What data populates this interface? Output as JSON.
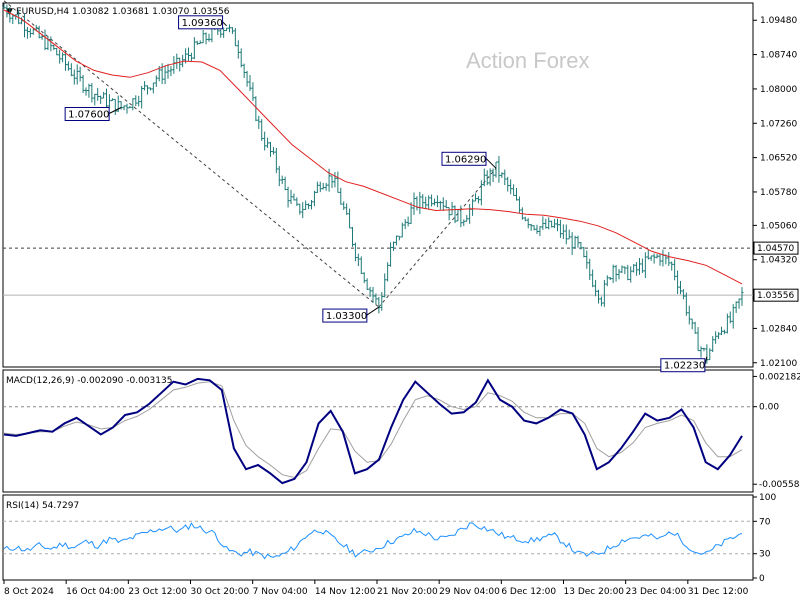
{
  "header": {
    "symbol_line": "EURUSD,H4  1.03082 1.03681 1.03070 1.03556"
  },
  "watermark": "Action Forex",
  "colors": {
    "bars": "#1e7a78",
    "ma": "#e02020",
    "macd_line": "#000080",
    "macd_signal": "#a0a0a0",
    "rsi_line": "#1e90ff",
    "dashed": "#404040",
    "grid": "#000000"
  },
  "chart_data": [
    {
      "type": "candlestick",
      "symbol": "EURUSD",
      "timeframe": "H4",
      "ohlc_header": {
        "open": 1.03082,
        "high": 1.03681,
        "low": 1.0307,
        "close": 1.03556
      },
      "y_ticks": [
        "1.09480",
        "1.08740",
        "1.08000",
        "1.07260",
        "1.06520",
        "1.05780",
        "1.05060",
        "1.04320",
        "1.03556",
        "1.02840",
        "1.02100"
      ],
      "ylim": [
        1.0203,
        1.0983
      ],
      "x_ticks": [
        "8 Oct 2024",
        "16 Oct 04:00",
        "23 Oct 12:00",
        "30 Oct 20:00",
        "7 Nov 04:00",
        "14 Nov 12:00",
        "21 Nov 20:00",
        "29 Nov 04:00",
        "6 Dec 12:00",
        "13 Dec 20:00",
        "23 Dec 04:00",
        "31 Dec 12:00"
      ],
      "price_path_closes": [
        1.0975,
        1.0955,
        1.0935,
        1.091,
        1.089,
        1.086,
        1.083,
        1.0805,
        1.0785,
        1.077,
        1.076,
        1.0775,
        1.08,
        1.0825,
        1.084,
        1.0855,
        1.088,
        1.0905,
        1.0925,
        1.0936,
        1.089,
        1.079,
        1.07,
        1.065,
        1.058,
        1.054,
        1.055,
        1.06,
        1.061,
        1.054,
        1.045,
        1.038,
        1.033,
        1.045,
        1.05,
        1.055,
        1.056,
        1.057,
        1.054,
        1.052,
        1.0545,
        1.06,
        1.0629,
        1.059,
        1.054,
        1.051,
        1.05,
        1.0505,
        1.048,
        1.046,
        1.04,
        1.035,
        1.042,
        1.04,
        1.041,
        1.043,
        1.044,
        1.042,
        1.035,
        1.026,
        1.0223,
        1.028,
        1.03,
        1.0356
      ],
      "moving_average_points": [
        1.097,
        1.095,
        1.092,
        1.089,
        1.086,
        1.084,
        1.083,
        1.0825,
        1.0835,
        1.085,
        1.086,
        1.0858,
        1.084,
        1.08,
        1.076,
        1.072,
        1.068,
        1.065,
        1.062,
        1.06,
        1.059,
        1.0575,
        1.056,
        1.0545,
        1.0538,
        1.054,
        1.0542,
        1.054,
        1.0536,
        1.053,
        1.0528,
        1.0522,
        1.0515,
        1.0505,
        1.049,
        1.047,
        1.045,
        1.0438,
        1.043,
        1.042,
        1.04,
        1.038
      ],
      "horizontal_lines": [
        {
          "label": "1.04570",
          "value": 1.0457,
          "style": "dashed"
        },
        {
          "label": "1.03556",
          "value": 1.03556,
          "style": "solid"
        }
      ],
      "annotations": [
        {
          "text": "1.09360",
          "value": 1.0936
        },
        {
          "text": "1.07600",
          "value": 1.076
        },
        {
          "text": "1.03300",
          "value": 1.033
        },
        {
          "text": "1.06290",
          "value": 1.0629
        },
        {
          "text": "1.02230",
          "value": 1.0223
        }
      ],
      "trendlines": [
        {
          "from": [
            0,
            1.099
          ],
          "to": [
            32,
            1.033
          ],
          "style": "dashed"
        },
        {
          "from": [
            32,
            1.033
          ],
          "to": [
            42,
            1.0629
          ],
          "style": "dashed"
        }
      ]
    },
    {
      "type": "line",
      "indicator_label": "MACD(12,26,9) -0.002090 -0.003135",
      "y_ticks": [
        "0.002182",
        "0.00",
        "-0.005584"
      ],
      "ylim": [
        -0.006,
        0.0025
      ],
      "series": [
        {
          "values": [
            -0.002,
            -0.0021,
            -0.0019,
            -0.0017,
            -0.0018,
            -0.0012,
            -0.0008,
            -0.0014,
            -0.002,
            -0.0015,
            -0.0006,
            -0.0004,
            0.0002,
            0.001,
            0.0018,
            0.0016,
            0.002,
            0.0019,
            0.0012,
            -0.003,
            -0.0045,
            -0.0042,
            -0.0048,
            -0.0055,
            -0.0052,
            -0.004,
            -0.0012,
            -0.0003,
            -0.0018,
            -0.0048,
            -0.0045,
            -0.0038,
            -0.0015,
            0.0005,
            0.0018,
            0.001,
            0.0002,
            -0.0005,
            -0.0004,
            0.0003,
            0.0019,
            0.0005,
            0.0,
            -0.001,
            -0.0012,
            -0.0008,
            -0.0002,
            -0.0005,
            -0.002,
            -0.0045,
            -0.004,
            -0.003,
            -0.0018,
            -0.0005,
            -0.001,
            -0.0008,
            -0.0002,
            -0.0015,
            -0.004,
            -0.0045,
            -0.0035,
            -0.0021
          ]
        },
        {
          "values": [
            -0.0019,
            -0.002,
            -0.0019,
            -0.0018,
            -0.0018,
            -0.0014,
            -0.0011,
            -0.0013,
            -0.0016,
            -0.0015,
            -0.001,
            -0.0007,
            -0.0002,
            0.0005,
            0.0012,
            0.0014,
            0.0017,
            0.0018,
            0.0015,
            -0.001,
            -0.0028,
            -0.0036,
            -0.0042,
            -0.0049,
            -0.0051,
            -0.0046,
            -0.003,
            -0.0016,
            -0.0017,
            -0.0032,
            -0.004,
            -0.0039,
            -0.0027,
            -0.001,
            0.0005,
            0.0008,
            0.0005,
            0.0,
            -0.0002,
            0.0,
            0.001,
            0.0008,
            0.0004,
            -0.0004,
            -0.0008,
            -0.0008,
            -0.0005,
            -0.0005,
            -0.0012,
            -0.003,
            -0.0036,
            -0.0033,
            -0.0026,
            -0.0015,
            -0.0012,
            -0.001,
            -0.0006,
            -0.001,
            -0.0026,
            -0.0036,
            -0.0036,
            -0.0031
          ]
        }
      ]
    },
    {
      "type": "line",
      "indicator_label": "RSI(14) 54.7297",
      "y_ticks": [
        "100",
        "70",
        "30",
        "0"
      ],
      "ylim": [
        0,
        100
      ],
      "series": [
        {
          "values": [
            35,
            38,
            34,
            40,
            36,
            42,
            38,
            45,
            40,
            48,
            44,
            50,
            55,
            60,
            62,
            58,
            66,
            60,
            55,
            35,
            30,
            32,
            28,
            25,
            30,
            40,
            55,
            60,
            50,
            40,
            30,
            32,
            38,
            45,
            50,
            58,
            55,
            48,
            50,
            60,
            68,
            62,
            56,
            50,
            48,
            46,
            50,
            52,
            42,
            30,
            28,
            32,
            40,
            48,
            50,
            52,
            48,
            58,
            45,
            32,
            30,
            40,
            48,
            55
          ]
        }
      ]
    }
  ]
}
